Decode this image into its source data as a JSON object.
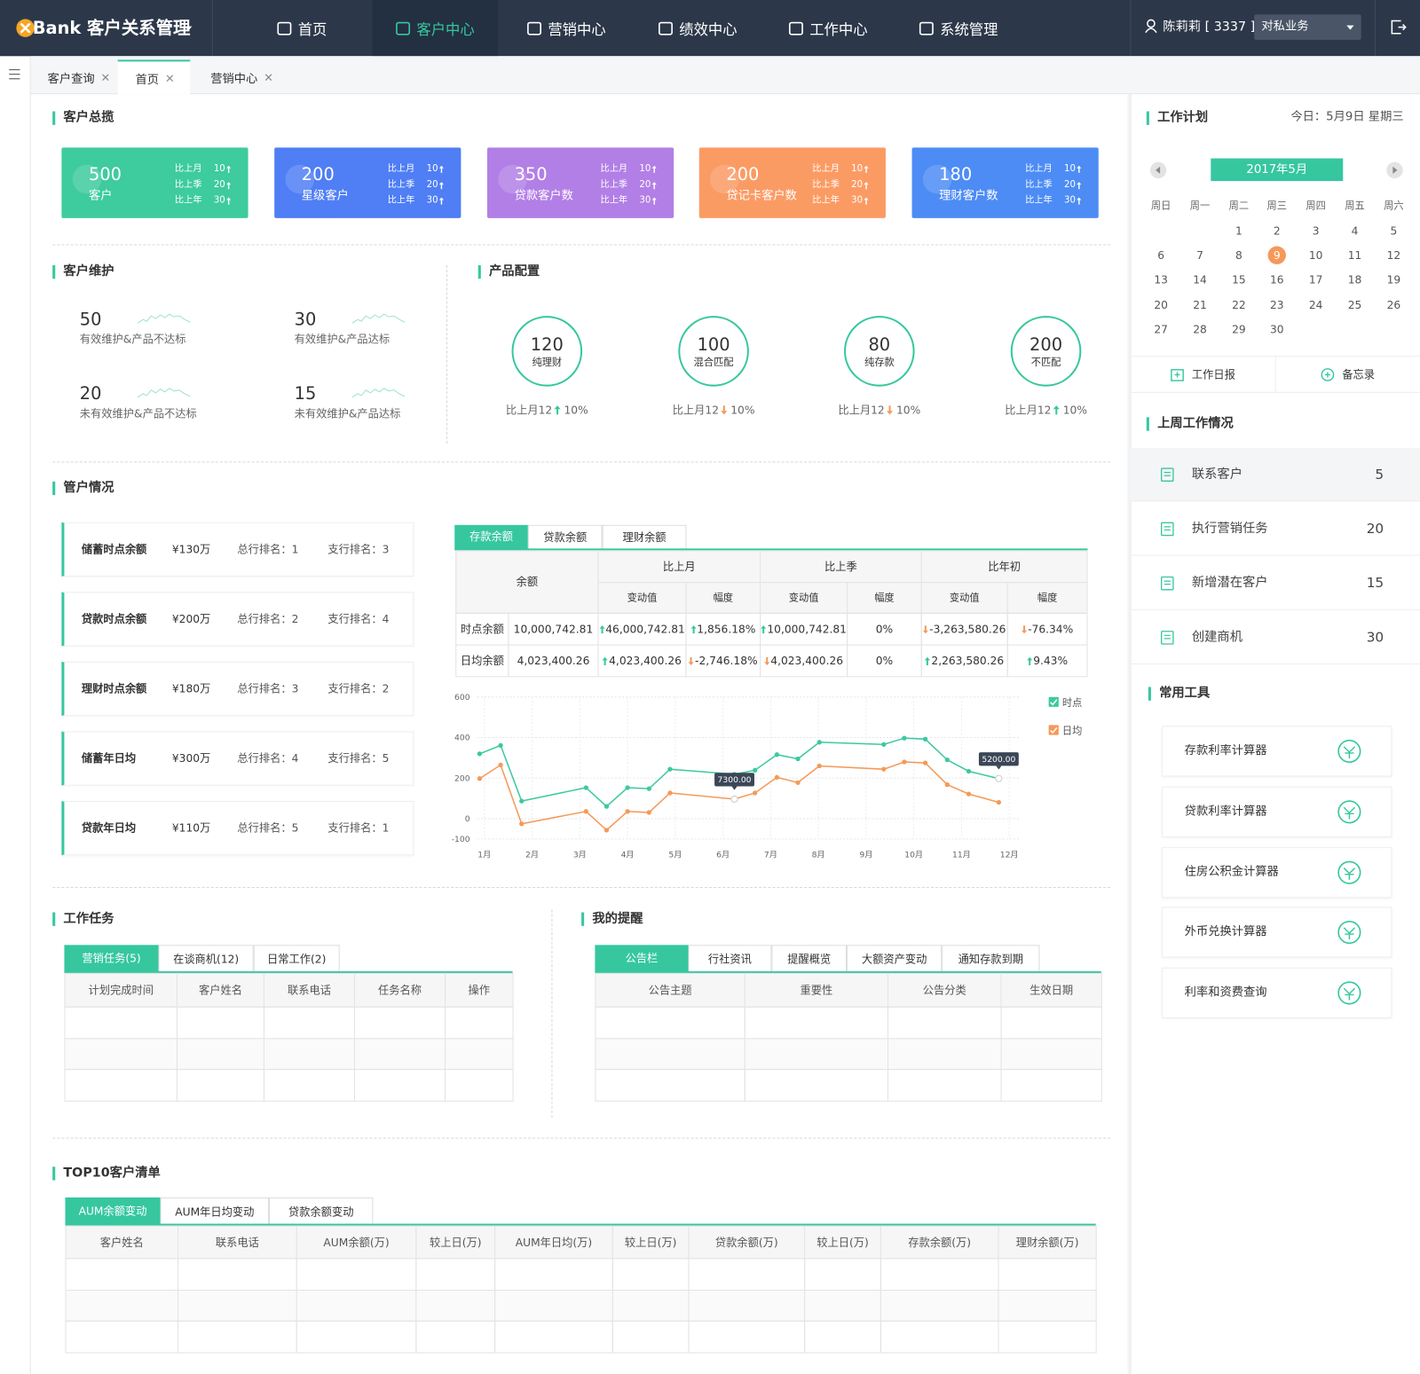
{
  "nav": {
    "brand": "Bank 客户关系管理",
    "menu": [
      "首页",
      "客户中心",
      "营销中心",
      "绩效中心",
      "工作中心",
      "系统管理"
    ],
    "user": "陈莉莉 [ 3337 ]",
    "business": "对私业务"
  },
  "tabs": [
    "客户查询",
    "首页",
    "营销中心"
  ],
  "overview": {
    "title": "客户总揽",
    "cards": [
      {
        "value": 500,
        "label": "客户",
        "color": "#3ecb9d",
        "compare": [
          {
            "label": "比上月",
            "value": 10
          },
          {
            "label": "比上季",
            "value": 20
          },
          {
            "label": "比上年",
            "value": 30
          }
        ]
      },
      {
        "value": 200,
        "label": "星级客户",
        "color": "#4f7ef5",
        "compare": [
          {
            "label": "比上月",
            "value": 10
          },
          {
            "label": "比上季",
            "value": 20
          },
          {
            "label": "比上年",
            "value": 30
          }
        ]
      },
      {
        "value": 350,
        "label": "贷款客户数",
        "color": "#b27fe6",
        "compare": [
          {
            "label": "比上月",
            "value": 10
          },
          {
            "label": "比上季",
            "value": 20
          },
          {
            "label": "比上年",
            "value": 30
          }
        ]
      },
      {
        "value": 200,
        "label": "贷记卡客户数",
        "color": "#fb9b64",
        "compare": [
          {
            "label": "比上月",
            "value": 10
          },
          {
            "label": "比上季",
            "value": 20
          },
          {
            "label": "比上年",
            "value": 30
          }
        ]
      },
      {
        "value": 180,
        "label": "理财客户数",
        "color": "#4d8cf5",
        "compare": [
          {
            "label": "比上月",
            "value": 10
          },
          {
            "label": "比上季",
            "value": 20
          },
          {
            "label": "比上年",
            "value": 30
          }
        ]
      }
    ]
  },
  "maintenance": {
    "title": "客户维护",
    "items": [
      {
        "value": 50,
        "label": "有效维护&产品不达标"
      },
      {
        "value": 30,
        "label": "有效维护&产品达标"
      },
      {
        "value": 20,
        "label": "未有效维护&产品不达标"
      },
      {
        "value": 15,
        "label": "未有效维护&产品达标"
      }
    ]
  },
  "products": {
    "title": "产品配置",
    "items": [
      {
        "value": 120,
        "label": "纯理财",
        "compare": "比上月12",
        "trend": "up",
        "pct": "10%"
      },
      {
        "value": 100,
        "label": "混合匹配",
        "compare": "比上月12",
        "trend": "down",
        "pct": "10%"
      },
      {
        "value": 80,
        "label": "纯存款",
        "compare": "比上月12",
        "trend": "down",
        "pct": "10%"
      },
      {
        "value": 200,
        "label": "不匹配",
        "compare": "比上月12",
        "trend": "up",
        "pct": "10%"
      }
    ]
  },
  "situation": {
    "title": "管户情况",
    "rows": [
      {
        "name": "储蓄时点余额",
        "amount": "¥130万",
        "total": "总行排名：1",
        "branch": "支行排名：3"
      },
      {
        "name": "贷款时点余额",
        "amount": "¥200万",
        "total": "总行排名：2",
        "branch": "支行排名：4"
      },
      {
        "name": "理财时点余额",
        "amount": "¥180万",
        "total": "总行排名：3",
        "branch": "支行排名：2"
      },
      {
        "name": "储蓄年日均",
        "amount": "¥300万",
        "total": "总行排名：4",
        "branch": "支行排名：5"
      },
      {
        "name": "贷款年日均",
        "amount": "¥110万",
        "total": "总行排名：5",
        "branch": "支行排名：1"
      }
    ]
  },
  "balance": {
    "tabs": [
      "存款余额",
      "贷款余额",
      "理财余额"
    ],
    "header": "余额",
    "groups": [
      "比上月",
      "比上季",
      "比年初"
    ],
    "sub": [
      "变动值",
      "幅度",
      "变动值",
      "幅度",
      "变动值",
      "幅度"
    ],
    "rows": [
      {
        "cells": [
          "时点余额",
          "10,000,742.81",
          "46,000,742.81",
          "1,856.18%",
          "10,000,742.81",
          "0%",
          "-3,263,580.26",
          "-76.34%"
        ],
        "trend": [
          "up",
          "up",
          "up",
          null,
          "down",
          "down"
        ]
      },
      {
        "cells": [
          "日均余额",
          "4,023,400.26",
          "4,023,400.26",
          "-2,746.18%",
          "4,023,400.26",
          "0%",
          "2,263,580.26",
          "9.43%"
        ],
        "trend": [
          "up",
          "down",
          "down",
          null,
          "up",
          "up"
        ]
      }
    ]
  },
  "chart_data": {
    "type": "line",
    "x": [
      0.9,
      1.34,
      1.78,
      3.13,
      3.56,
      4.0,
      4.45,
      4.89,
      6.24,
      6.67,
      7.13,
      7.57,
      8.02,
      9.37,
      9.8,
      10.24,
      10.7,
      11.15,
      11.78
    ],
    "series": [
      {
        "name": "时点",
        "color": "#3cc9a0",
        "values": [
          320,
          361,
          87,
          153,
          61,
          153,
          148,
          244,
          219,
          239,
          316,
          295,
          377,
          366,
          397,
          392,
          290,
          234,
          198
        ]
      },
      {
        "name": "日均",
        "color": "#f5995a",
        "values": [
          198,
          265,
          -25,
          36,
          -56,
          36,
          31,
          127,
          97,
          127,
          204,
          178,
          260,
          244,
          280,
          275,
          168,
          122,
          81
        ]
      }
    ],
    "xlim": [
      0.85,
      12.2
    ],
    "xticks": [
      {
        "value": 1,
        "label": "1月"
      },
      {
        "value": 2,
        "label": "2月"
      },
      {
        "value": 3,
        "label": "3月"
      },
      {
        "value": 4,
        "label": "4月"
      },
      {
        "value": 5,
        "label": "5月"
      },
      {
        "value": 6,
        "label": "6月"
      },
      {
        "value": 7,
        "label": "7月"
      },
      {
        "value": 8,
        "label": "8月"
      },
      {
        "value": 9,
        "label": "9月"
      },
      {
        "value": 10,
        "label": "10月"
      },
      {
        "value": 11,
        "label": "11月"
      },
      {
        "value": 12,
        "label": "12月"
      }
    ],
    "ylim": [
      -100,
      600
    ],
    "yticks": [
      -100,
      0,
      200,
      400,
      600
    ],
    "grid": true,
    "legend": "right",
    "annotations": [
      {
        "text": "7300.00",
        "x": 6.24,
        "y": 97
      },
      {
        "text": "5200.00",
        "x": 11.78,
        "y": 198
      }
    ]
  },
  "calendar": {
    "title": "工作计划",
    "today": "今日：5月9日 星期三",
    "month": "2017年5月",
    "weekdays": [
      "周日",
      "周一",
      "周二",
      "周三",
      "周四",
      "周五",
      "周六"
    ],
    "weeks": [
      [
        null,
        null,
        1,
        2,
        3,
        4,
        5
      ],
      [
        6,
        7,
        8,
        9,
        10,
        11,
        12
      ],
      [
        13,
        14,
        15,
        16,
        17,
        18,
        19
      ],
      [
        20,
        21,
        22,
        23,
        24,
        25,
        26
      ],
      [
        27,
        28,
        29,
        30
      ]
    ],
    "buttons": [
      "工作日报",
      "备忘录"
    ]
  },
  "last_week": {
    "title": "上周工作情况",
    "items": [
      {
        "label": "联系客户",
        "value": 5
      },
      {
        "label": "执行营销任务",
        "value": 20
      },
      {
        "label": "新增潜在客户",
        "value": 15
      },
      {
        "label": "创建商机",
        "value": 30
      }
    ]
  },
  "tools": {
    "title": "常用工具",
    "items": [
      "存款利率计算器",
      "贷款利率计算器",
      "住房公积金计算器",
      "外币兑换计算器",
      "利率和资费查询"
    ]
  },
  "tasks": {
    "title": "工作任务",
    "tabs": [
      "营销任务(5)",
      "在谈商机(12)",
      "日常工作(2)"
    ],
    "headers": [
      "计划完成时间",
      "客户姓名",
      "联系电话",
      "任务名称",
      "操作"
    ]
  },
  "reminders": {
    "title": "我的提醒",
    "tabs": [
      "公告栏",
      "行社资讯",
      "提醒概览",
      "大额资产变动",
      "通知存款到期"
    ],
    "headers": [
      "公告主题",
      "重要性",
      "公告分类",
      "生效日期"
    ]
  },
  "top10": {
    "title": "TOP10客户清单",
    "tabs": [
      "AUM余额变动",
      "AUM年日均变动",
      "贷款余额变动"
    ],
    "headers": [
      "客户姓名",
      "联系电话",
      "AUM余额(万)",
      "较上日(万)",
      "AUM年日均(万)",
      "较上日(万)",
      "贷款余额(万)",
      "较上日(万)",
      "存款余额(万)",
      "理财余额(万)"
    ]
  }
}
